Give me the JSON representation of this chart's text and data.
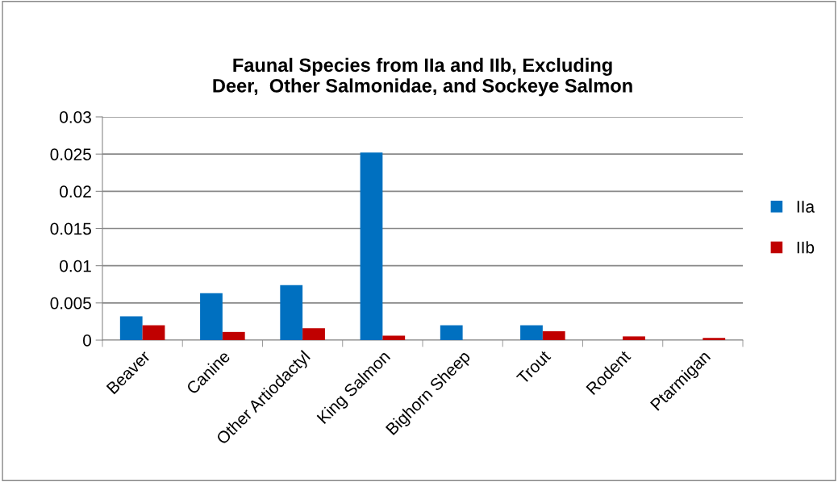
{
  "chart_data": {
    "type": "bar",
    "title": "Faunal Species from IIa and IIb, Excluding\nDeer,  Other Salmonidae, and Sockeye Salmon",
    "categories": [
      "Beaver",
      "Canine",
      "Other Artiodactyl",
      "King Salmon",
      "Bighorn Sheep",
      "Trout",
      "Rodent",
      "Ptarmigan"
    ],
    "series": [
      {
        "name": "IIa",
        "color": "#0070c0",
        "values": [
          0.0032,
          0.0063,
          0.0074,
          0.0252,
          0.002,
          0.002,
          0,
          0
        ]
      },
      {
        "name": "IIb",
        "color": "#c00000",
        "values": [
          0.002,
          0.0011,
          0.0016,
          0.0006,
          0,
          0.0012,
          0.0005,
          0.0003
        ]
      }
    ],
    "ylim": [
      0,
      0.03
    ],
    "yticks": [
      {
        "value": 0,
        "label": "0"
      },
      0.005,
      0.01,
      0.015,
      0.02,
      0.025,
      0.03
    ],
    "grid": "y",
    "legend": "right"
  }
}
